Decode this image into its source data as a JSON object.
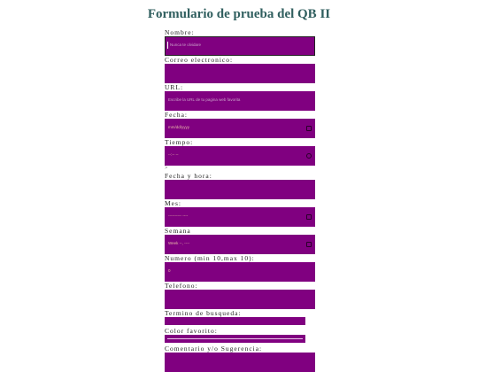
{
  "page": {
    "title": "Formulario de prueba del QB II"
  },
  "form": {
    "nombre": {
      "label": "Nombre:",
      "placeholder": "Nunca te olvidare"
    },
    "correo": {
      "label": "Correo electronico:"
    },
    "url": {
      "label": "URL:",
      "placeholder": "Escribe la URL de tu pagina web favorita"
    },
    "fecha": {
      "label": "Fecha:",
      "value": "mm/dd/yyyy"
    },
    "tiempo": {
      "label": "Tiempo:",
      "value": "--:-- --"
    },
    "stray_text": ">",
    "fecha_hora": {
      "label": "Fecha y hora:"
    },
    "mes": {
      "label": "Mes:",
      "value": "---------- ----"
    },
    "semana": {
      "label": "Semana",
      "value": "Week --, ----"
    },
    "numero": {
      "label": "Numero (min 10,max 10):",
      "value": "0"
    },
    "telefono": {
      "label": "Telefono:"
    },
    "busqueda": {
      "label": "Termino de busqueda:"
    },
    "color": {
      "label": "Color favorito:"
    },
    "comentario": {
      "label": "Comentario y/o Sugerencia:"
    }
  },
  "colors": {
    "input_bg": "#800080",
    "title": "#2f5e5e"
  },
  "icons": {
    "calendar": "calendar-icon",
    "clock": "clock-icon"
  }
}
